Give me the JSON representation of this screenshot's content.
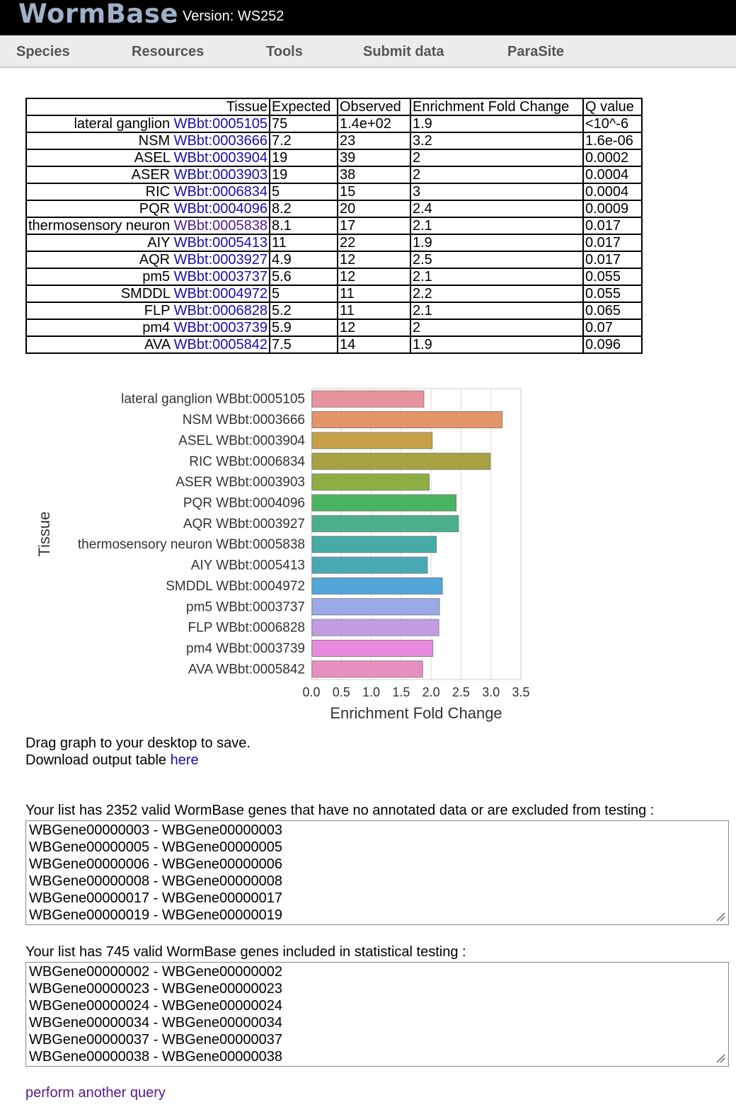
{
  "header": {
    "logo": "WormBase",
    "version": "Version: WS252"
  },
  "nav": [
    "Species",
    "Resources",
    "Tools",
    "Submit data",
    "ParaSite"
  ],
  "table": {
    "columns": [
      "Tissue",
      "Expected",
      "Observed",
      "Enrichment Fold Change",
      "Q value"
    ],
    "rows": [
      {
        "name": "lateral ganglion",
        "id": "WBbt:0005105",
        "expected": "75",
        "observed": "1.4e+02",
        "fold": "1.9",
        "q": "<10^-6"
      },
      {
        "name": "NSM",
        "id": "WBbt:0003666",
        "expected": "7.2",
        "observed": "23",
        "fold": "3.2",
        "q": "1.6e-06"
      },
      {
        "name": "ASEL",
        "id": "WBbt:0003904",
        "expected": "19",
        "observed": "39",
        "fold": "2",
        "q": "0.0002"
      },
      {
        "name": "ASER",
        "id": "WBbt:0003903",
        "expected": "19",
        "observed": "38",
        "fold": "2",
        "q": "0.0004"
      },
      {
        "name": "RIC",
        "id": "WBbt:0006834",
        "expected": "5",
        "observed": "15",
        "fold": "3",
        "q": "0.0004"
      },
      {
        "name": "PQR",
        "id": "WBbt:0004096",
        "expected": "8.2",
        "observed": "20",
        "fold": "2.4",
        "q": "0.0009"
      },
      {
        "name": "thermosensory neuron",
        "id": "WBbt:0005838",
        "expected": "8.1",
        "observed": "17",
        "fold": "2.1",
        "q": "0.017",
        "visited": true
      },
      {
        "name": "AIY",
        "id": "WBbt:0005413",
        "expected": "11",
        "observed": "22",
        "fold": "1.9",
        "q": "0.017"
      },
      {
        "name": "AQR",
        "id": "WBbt:0003927",
        "expected": "4.9",
        "observed": "12",
        "fold": "2.5",
        "q": "0.017"
      },
      {
        "name": "pm5",
        "id": "WBbt:0003737",
        "expected": "5.6",
        "observed": "12",
        "fold": "2.1",
        "q": "0.055"
      },
      {
        "name": "SMDDL",
        "id": "WBbt:0004972",
        "expected": "5",
        "observed": "11",
        "fold": "2.2",
        "q": "0.055"
      },
      {
        "name": "FLP",
        "id": "WBbt:0006828",
        "expected": "5.2",
        "observed": "11",
        "fold": "2.1",
        "q": "0.065"
      },
      {
        "name": "pm4",
        "id": "WBbt:0003739",
        "expected": "5.9",
        "observed": "12",
        "fold": "2",
        "q": "0.07"
      },
      {
        "name": "AVA",
        "id": "WBbt:0005842",
        "expected": "7.5",
        "observed": "14",
        "fold": "1.9",
        "q": "0.096"
      }
    ]
  },
  "chart_data": {
    "type": "bar",
    "orientation": "horizontal",
    "categories": [
      "lateral ganglion WBbt:0005105",
      "NSM WBbt:0003666",
      "ASEL WBbt:0003904",
      "RIC WBbt:0006834",
      "ASER WBbt:0003903",
      "PQR WBbt:0004096",
      "AQR WBbt:0003927",
      "thermosensory neuron WBbt:0005838",
      "AIY WBbt:0005413",
      "SMDDL WBbt:0004972",
      "pm5 WBbt:0003737",
      "FLP WBbt:0006828",
      "pm4 WBbt:0003739",
      "AVA WBbt:0005842"
    ],
    "values": [
      1.88,
      3.19,
      2.02,
      2.99,
      1.97,
      2.42,
      2.46,
      2.09,
      1.94,
      2.19,
      2.14,
      2.13,
      2.03,
      1.86
    ],
    "colors": [
      "#e8939d",
      "#e39469",
      "#c8a048",
      "#a7a142",
      "#8ead45",
      "#4bb45e",
      "#4bb08a",
      "#47aca5",
      "#48a9b4",
      "#52a6d8",
      "#9aa9e7",
      "#c39be3",
      "#e88ae0",
      "#e78fbf"
    ],
    "xlabel": "Enrichment Fold Change",
    "ylabel": "Tissue",
    "xlim": [
      0,
      3.5
    ],
    "xticks": [
      "0.0",
      "0.5",
      "1.0",
      "1.5",
      "2.0",
      "2.5",
      "3.0",
      "3.5"
    ],
    "grid": true
  },
  "notes": {
    "drag": "Drag graph to your desktop to save.",
    "download_prefix": "Download output table ",
    "download_link": "here"
  },
  "excluded": {
    "label": "Your list has 2352 valid WormBase genes that have no annotated data or are excluded from testing :",
    "genes": [
      "WBGene00000003 - WBGene00000003",
      "WBGene00000005 - WBGene00000005",
      "WBGene00000006 - WBGene00000006",
      "WBGene00000008 - WBGene00000008",
      "WBGene00000017 - WBGene00000017",
      "WBGene00000019 - WBGene00000019"
    ]
  },
  "included": {
    "label": "Your list has 745 valid WormBase genes included in statistical testing :",
    "genes": [
      "WBGene00000002 - WBGene00000002",
      "WBGene00000023 - WBGene00000023",
      "WBGene00000024 - WBGene00000024",
      "WBGene00000034 - WBGene00000034",
      "WBGene00000037 - WBGene00000037",
      "WBGene00000038 - WBGene00000038"
    ]
  },
  "footer_link": "perform another query"
}
